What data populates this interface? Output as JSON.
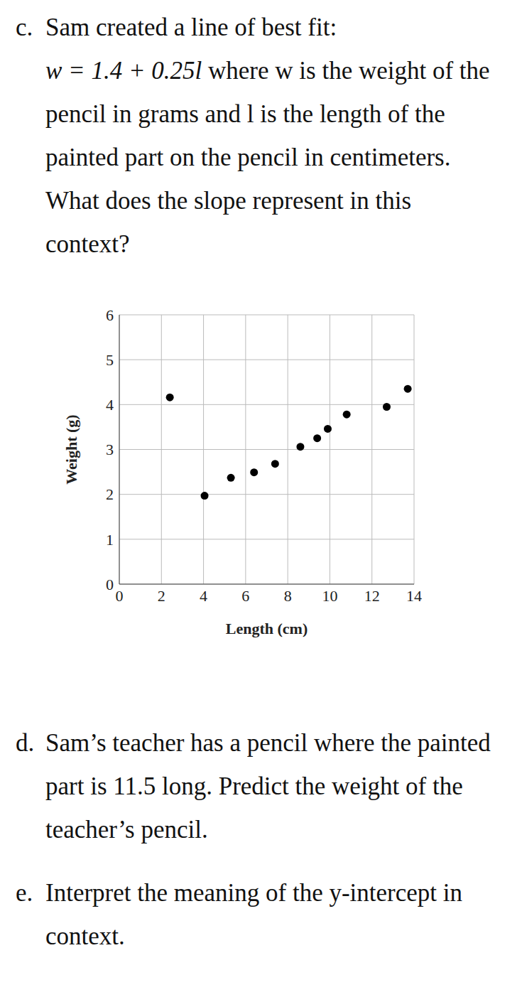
{
  "questions": [
    {
      "label": "c.",
      "text": "Sam created a line of best fit:",
      "equation": "w = 1.4 + 0.25l",
      "rest": "where w is the weight of the pencil in grams and l is the length of the painted part on the pencil in centimeters. What does the slope represent in this context?"
    },
    {
      "label": "d.",
      "text": "Sam’s teacher has a pencil where the painted part is 11.5 long.  Predict the weight of the teacher’s pencil."
    },
    {
      "label": "e.",
      "text": "Interpret the meaning of the y-intercept in context."
    }
  ],
  "chart_data": {
    "type": "scatter",
    "x_label": "Length (cm)",
    "y_label": "Weight (g)",
    "x": [
      2.4,
      4.05,
      5.3,
      6.4,
      7.4,
      8.6,
      9.4,
      9.9,
      10.8,
      12.7,
      13.7
    ],
    "values": [
      4.16,
      1.97,
      2.37,
      2.49,
      2.68,
      3.06,
      3.25,
      3.46,
      3.78,
      3.95,
      4.35
    ],
    "color": "#000000",
    "marker": "circle",
    "xlim": [
      0,
      14
    ],
    "xticks": [
      0,
      2,
      4,
      6,
      8,
      10,
      12,
      14
    ],
    "ylim": [
      0,
      6
    ],
    "yticks": [
      0,
      1,
      2,
      3,
      4,
      5,
      6
    ],
    "grid": true
  }
}
